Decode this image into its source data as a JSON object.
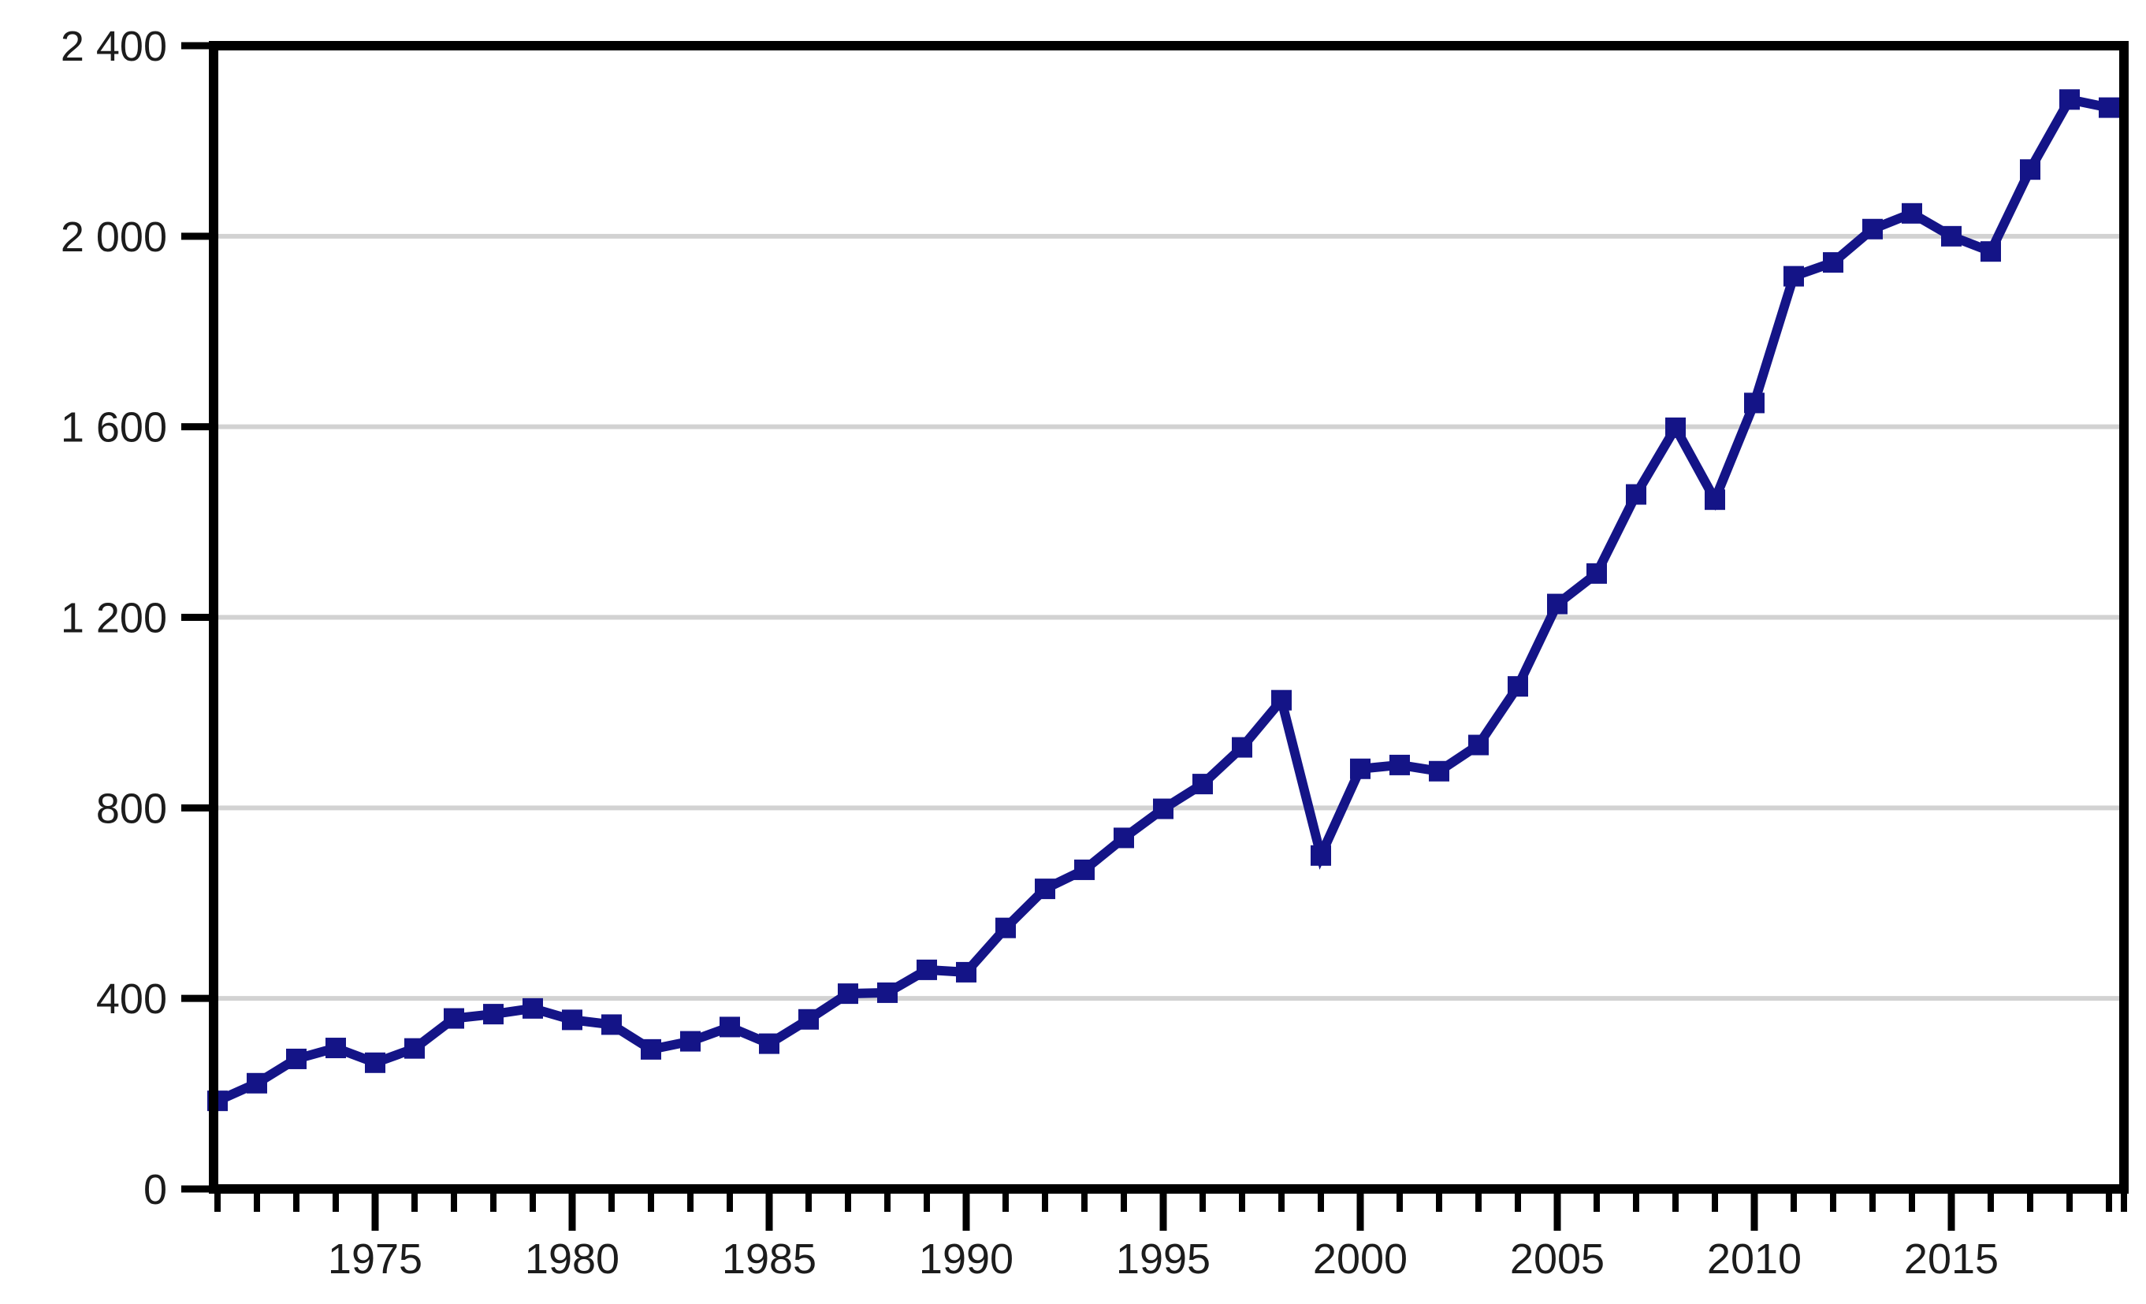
{
  "chart_data": {
    "type": "line",
    "title": "",
    "xlabel": "",
    "ylabel": "",
    "x": [
      1971,
      1972,
      1973,
      1974,
      1975,
      1976,
      1977,
      1978,
      1979,
      1980,
      1981,
      1982,
      1983,
      1984,
      1985,
      1986,
      1987,
      1988,
      1989,
      1990,
      1991,
      1992,
      1993,
      1994,
      1995,
      1996,
      1997,
      1998,
      1999,
      2000,
      2001,
      2002,
      2003,
      2004,
      2005,
      2006,
      2007,
      2008,
      2009,
      2010,
      2011,
      2012,
      2013,
      2014,
      2015,
      2016,
      2017,
      2018,
      2019
    ],
    "values": [
      185,
      222,
      273,
      296,
      265,
      295,
      358,
      367,
      379,
      355,
      345,
      293,
      310,
      340,
      305,
      356,
      410,
      412,
      460,
      455,
      548,
      630,
      670,
      737,
      798,
      850,
      927,
      1026,
      700,
      882,
      890,
      877,
      932,
      1055,
      1228,
      1292,
      1458,
      1598,
      1447,
      1650,
      1916,
      1945,
      2015,
      2048,
      2000,
      1968,
      2140,
      2287,
      2270
    ],
    "series_name": "value",
    "line_style": "solid",
    "marker": "square",
    "legend": "none",
    "grid": "horizontal-only",
    "xlim": [
      1970.9,
      2019.6
    ],
    "ylim": [
      0,
      2400
    ],
    "x_major_tick_interval": 5,
    "x_minor_tick_interval": 1,
    "y_tick_interval": 400,
    "x_tick_labels": [
      "1975",
      "1980",
      "1985",
      "1990",
      "1995",
      "2000",
      "2005",
      "2010",
      "2015"
    ],
    "x_tick_values": [
      1975,
      1980,
      1985,
      1990,
      1995,
      2000,
      2005,
      2010,
      2015
    ],
    "y_tick_labels": [
      "0",
      "400",
      "800",
      "1 200",
      "1 600",
      "2 000",
      "2 400"
    ],
    "y_tick_values": [
      0,
      400,
      800,
      1200,
      1600,
      2000,
      2400
    ],
    "colors": {
      "line": "#141487",
      "marker": "#141487",
      "grid": "#d2d2d2",
      "axis": "#000000",
      "tick_label": "#1c1c1c",
      "background": "#ffffff"
    }
  }
}
